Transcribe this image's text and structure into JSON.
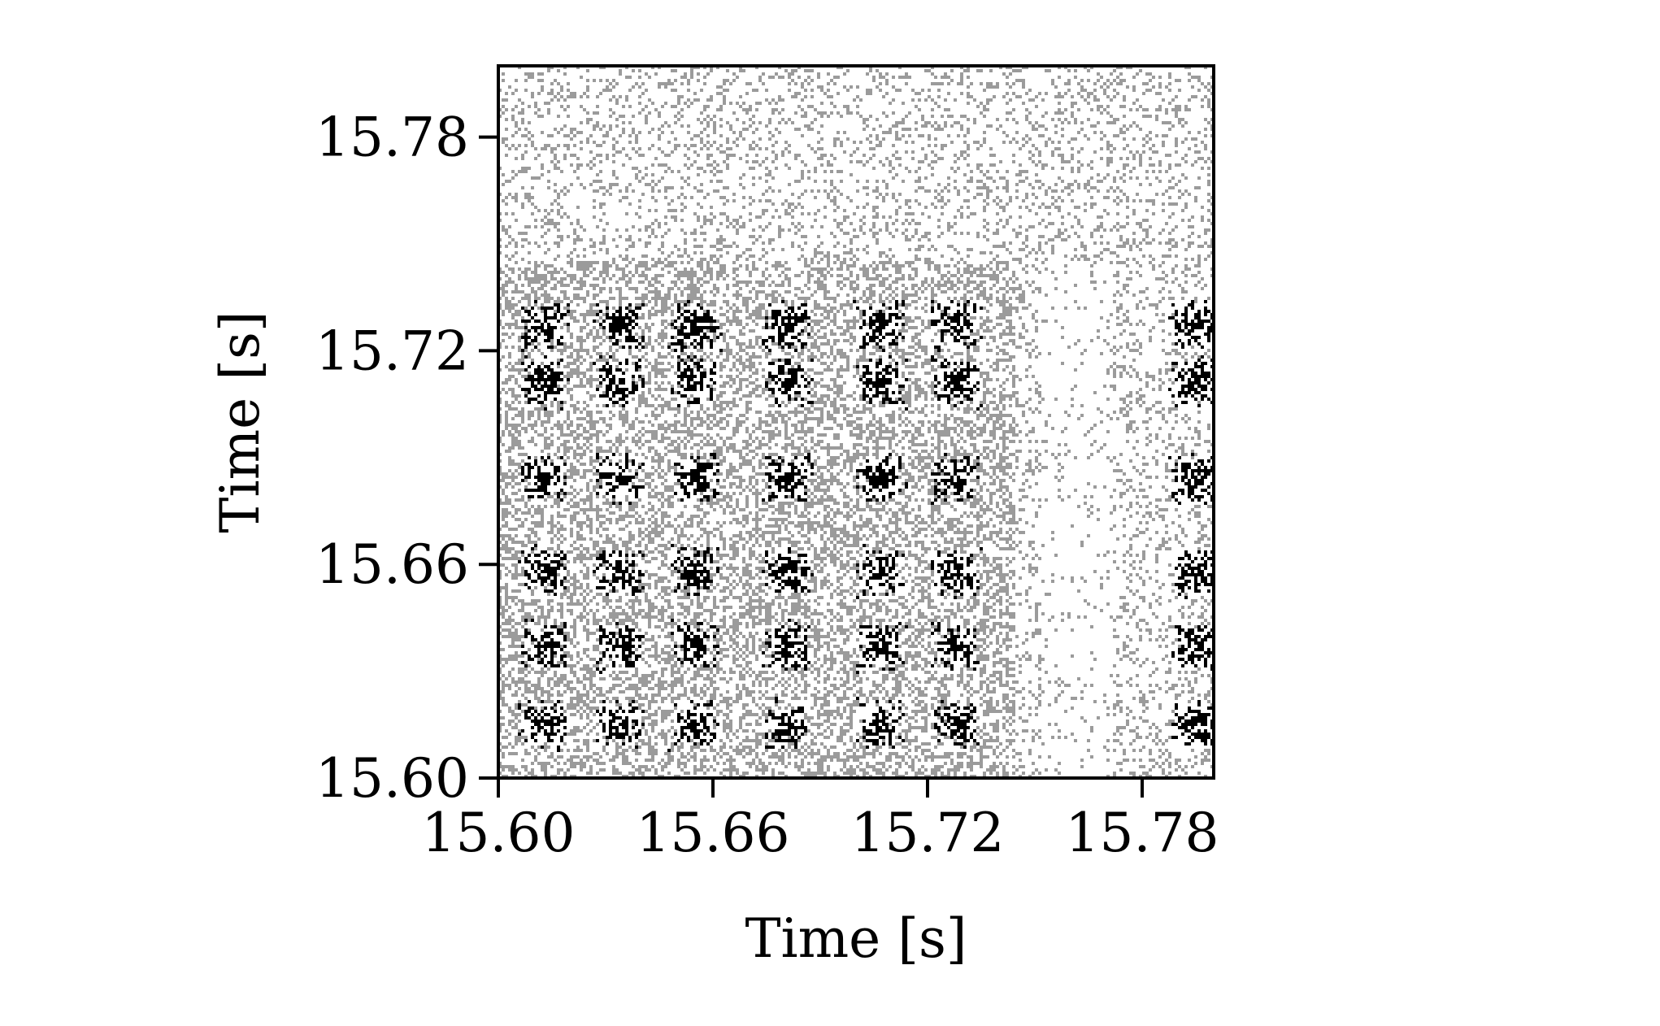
{
  "chart_data": {
    "type": "heatmap",
    "subtype": "recurrence-plot",
    "title": "",
    "xlabel": "Time [s]",
    "ylabel": "Time [s]",
    "xlim": [
      15.6,
      15.8
    ],
    "ylim": [
      15.6,
      15.8
    ],
    "xticks": [
      "15.60",
      "15.66",
      "15.72",
      "15.78"
    ],
    "yticks": [
      "15.60",
      "15.66",
      "15.72",
      "15.78"
    ],
    "colormap": "binary",
    "colors": {
      "dense": "#000000",
      "medium": "#9a9a9a",
      "background": "#ffffff"
    },
    "recurrence_blocks_center_s": [
      15.613,
      15.634,
      15.655,
      15.681,
      15.707,
      15.728,
      15.795
    ],
    "recurrence_blocks_rows_s": [
      15.615,
      15.637,
      15.658,
      15.684,
      15.711,
      15.727
    ],
    "low_recurrence_band_s": [
      15.745,
      15.8
    ],
    "grid": false,
    "legend": "none"
  }
}
